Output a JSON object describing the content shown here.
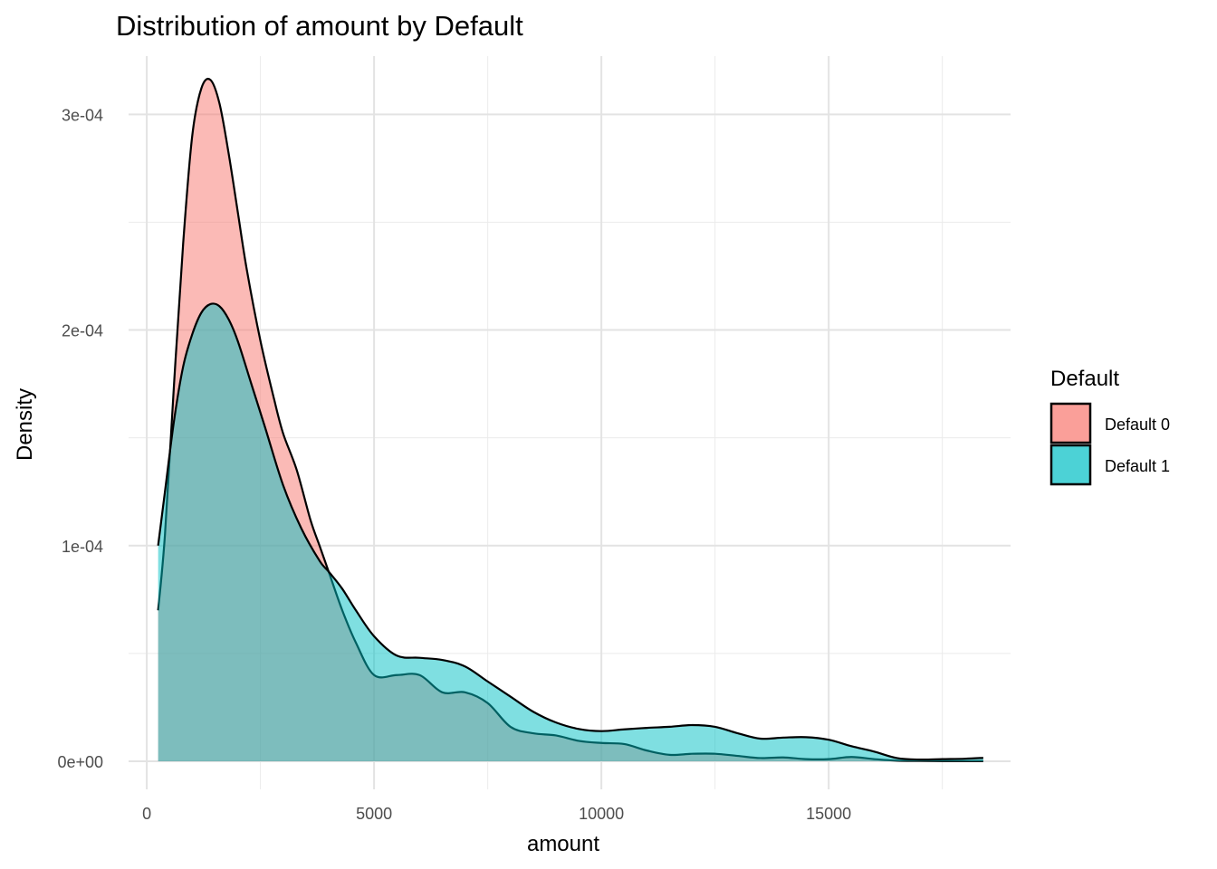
{
  "chart_data": {
    "type": "area",
    "subtype": "density",
    "title": "Distribution of amount by Default",
    "xlabel": "amount",
    "ylabel": "Density",
    "xlim": [
      -400,
      19000
    ],
    "ylim": [
      -1.3e-05,
      0.000327
    ],
    "x_ticks": [
      0,
      5000,
      10000,
      15000
    ],
    "x_tick_labels": [
      "0",
      "5000",
      "10000",
      "15000"
    ],
    "y_ticks": [
      0,
      0.0001,
      0.0002,
      0.0003
    ],
    "y_tick_labels": [
      "0e+00",
      "1e-04",
      "2e-04",
      "3e-04"
    ],
    "grid": true,
    "legend": {
      "title": "Default",
      "position": "right"
    },
    "series": [
      {
        "name": "Default 0",
        "color": "#F8766D",
        "x": [
          250,
          400,
          600,
          800,
          1000,
          1200,
          1400,
          1600,
          1800,
          2000,
          2200,
          2500,
          2800,
          3000,
          3300,
          3600,
          3800,
          4000,
          4300,
          4600,
          5000,
          5500,
          6000,
          6500,
          7000,
          7500,
          8000,
          8500,
          9000,
          9500,
          10000,
          10500,
          11000,
          11500,
          12000,
          12500,
          13000,
          13500,
          14000,
          14500,
          15000,
          15500,
          16000,
          16500,
          17000,
          17500,
          18000,
          18400
        ],
        "values": [
          7e-05,
          0.000105,
          0.000175,
          0.00024,
          0.00029,
          0.000312,
          0.000316,
          0.000305,
          0.000282,
          0.000255,
          0.000228,
          0.000195,
          0.000168,
          0.000152,
          0.000135,
          0.000112,
          0.0001,
          8.8e-05,
          7e-05,
          5.5e-05,
          4e-05,
          4e-05,
          4e-05,
          3.2e-05,
          3.2e-05,
          2.7e-05,
          1.6e-05,
          1.3e-05,
          1.2e-05,
          9.5e-06,
          8.5e-06,
          8e-06,
          5e-06,
          3e-06,
          3.5e-06,
          3.5e-06,
          2.5e-06,
          1.5e-06,
          1.8e-06,
          1e-06,
          1e-06,
          2e-06,
          1e-06,
          3e-07,
          2e-07,
          1e-07,
          1e-07,
          1e-07
        ]
      },
      {
        "name": "Default 1",
        "color": "#00BFC4",
        "x": [
          250,
          400,
          600,
          800,
          1000,
          1200,
          1400,
          1600,
          1800,
          2000,
          2300,
          2600,
          3000,
          3400,
          3800,
          4000,
          4300,
          4600,
          5000,
          5500,
          6000,
          6500,
          7000,
          7500,
          8000,
          8500,
          9000,
          9500,
          10000,
          10500,
          11000,
          11500,
          12000,
          12500,
          13000,
          13500,
          14000,
          14500,
          15000,
          15500,
          16000,
          16500,
          17000,
          17500,
          18000,
          18400
        ],
        "values": [
          0.0001,
          0.000125,
          0.000158,
          0.000183,
          0.000198,
          0.000208,
          0.000212,
          0.000211,
          0.000205,
          0.000195,
          0.000175,
          0.000155,
          0.000128,
          0.000108,
          9.3e-05,
          8.8e-05,
          8e-05,
          7e-05,
          5.8e-05,
          4.9e-05,
          4.8e-05,
          4.7e-05,
          4.4e-05,
          3.7e-05,
          3e-05,
          2.3e-05,
          1.8e-05,
          1.5e-05,
          1.4e-05,
          1.48e-05,
          1.55e-05,
          1.6e-05,
          1.68e-05,
          1.6e-05,
          1.3e-05,
          1.05e-05,
          1.1e-05,
          1.12e-05,
          1e-05,
          7e-06,
          4.5e-06,
          1.5e-06,
          8e-07,
          1e-06,
          1.2e-06,
          1.6e-06
        ]
      }
    ]
  }
}
